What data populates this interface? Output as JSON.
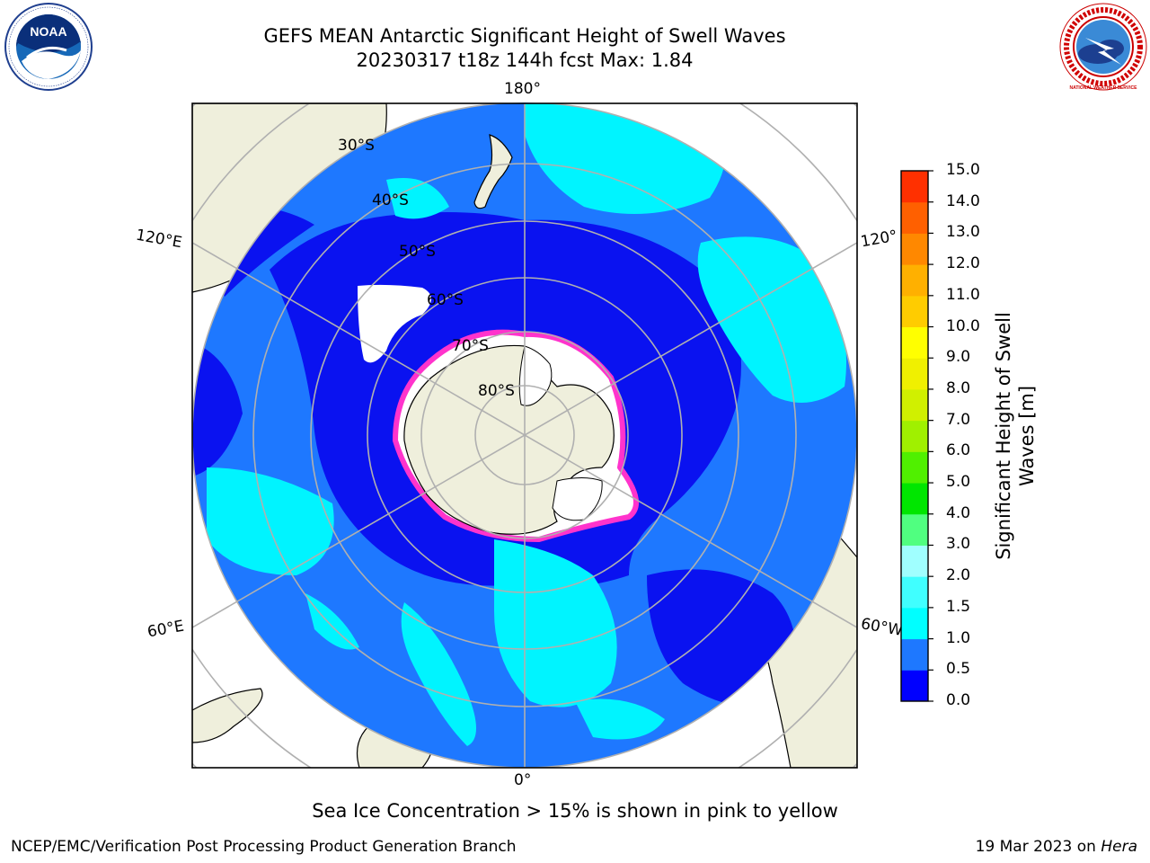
{
  "title": {
    "line1": "GEFS MEAN Antarctic Significant Height of Swell Waves",
    "line2": "20230317 t18z 144h fcst   Max: 1.84"
  },
  "map": {
    "projection": "south-polar-stereographic",
    "longitude_labels": {
      "top": "180°",
      "bottom": "0°",
      "upper_left": "120°E",
      "upper_right": "120°",
      "lower_left": "60°E",
      "lower_right": "60°W"
    },
    "latitude_labels": [
      "30°S",
      "40°S",
      "50°S",
      "60°S",
      "70°S",
      "80°S"
    ],
    "colors": {
      "ocean_low": "#0000ff",
      "ocean_mid": "#1e78ff",
      "ocean_high": "#00ffff",
      "land": "#efefdc",
      "ice": "#ffffff",
      "sea_ice_edge": "#ff33cc",
      "grid": "#b0b0b0"
    }
  },
  "colorbar": {
    "label": "Significant Height of Swell Waves [m]",
    "label_line1": "Significant Height of Swell",
    "label_line2": "Waves [m]",
    "ticks": [
      "0.0",
      "0.5",
      "1.0",
      "1.5",
      "2.0",
      "3.0",
      "4.0",
      "5.0",
      "6.0",
      "7.0",
      "8.0",
      "9.0",
      "10.0",
      "11.0",
      "12.0",
      "13.0",
      "14.0",
      "15.0"
    ],
    "colors": [
      "#0000ff",
      "#1e78ff",
      "#00ffff",
      "#40ffff",
      "#a0ffff",
      "#50ff80",
      "#00e600",
      "#50f000",
      "#a0f000",
      "#d0f000",
      "#f0f000",
      "#ffff00",
      "#ffcc00",
      "#ffb000",
      "#ff8800",
      "#ff6000",
      "#ff3000",
      "#ff0000"
    ]
  },
  "logos": {
    "left": "NOAA",
    "right": "NATIONAL WEATHER SERVICE"
  },
  "footnote": "Sea Ice Concentration > 15% is shown in pink to yellow",
  "credit": "NCEP/EMC/Verification Post Processing Product Generation Branch",
  "datestamp": {
    "date": "19 Mar 2023 on",
    "system": "Hera"
  }
}
